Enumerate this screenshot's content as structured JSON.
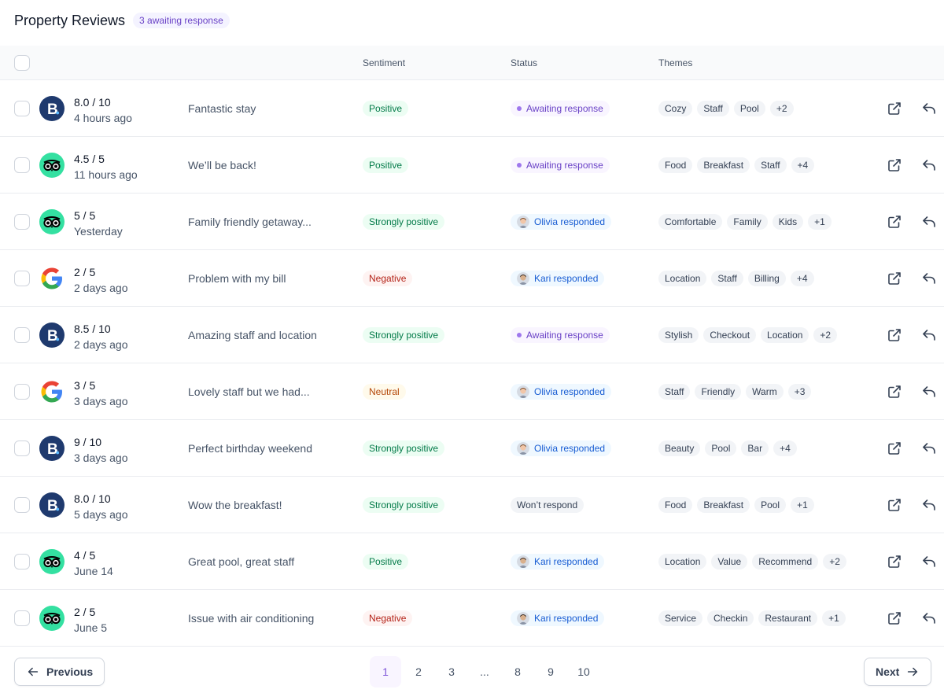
{
  "header": {
    "title": "Property Reviews",
    "awaiting_count": "3 awaiting response"
  },
  "columns": {
    "sentiment": "Sentiment",
    "status": "Status",
    "themes": "Themes"
  },
  "colors": {
    "booking": "#1f3a6e",
    "tripadvisor": "#34e0a1",
    "accent_purple": "#7f56d9"
  },
  "reviews": [
    {
      "source": "booking",
      "rating": "8.0 / 10",
      "when": "4 hours ago",
      "title": "Fantastic stay",
      "sentiment": "Positive",
      "sentiment_kind": "positive",
      "status": "Awaiting response",
      "status_kind": "awaiting",
      "themes": [
        "Cozy",
        "Staff",
        "Pool",
        "+2"
      ]
    },
    {
      "source": "tripadvisor",
      "rating": "4.5 / 5",
      "when": "11 hours ago",
      "title": "We’ll be back!",
      "sentiment": "Positive",
      "sentiment_kind": "positive",
      "status": "Awaiting response",
      "status_kind": "awaiting",
      "themes": [
        "Food",
        "Breakfast",
        "Staff",
        "+4"
      ]
    },
    {
      "source": "tripadvisor",
      "rating": "5 / 5",
      "when": "Yesterday",
      "title": "Family friendly getaway...",
      "sentiment": "Strongly positive",
      "sentiment_kind": "positive",
      "status": "Olivia responded",
      "status_kind": "responded",
      "responder": "olivia",
      "themes": [
        "Comfortable",
        "Family",
        "Kids",
        "+1"
      ]
    },
    {
      "source": "google",
      "rating": "2 / 5",
      "when": "2 days ago",
      "title": "Problem with my bill",
      "sentiment": "Negative",
      "sentiment_kind": "negative",
      "status": "Kari responded",
      "status_kind": "responded",
      "responder": "kari",
      "themes": [
        "Location",
        "Staff",
        "Billing",
        "+4"
      ]
    },
    {
      "source": "booking",
      "rating": "8.5 / 10",
      "when": "2 days ago",
      "title": "Amazing staff and location",
      "sentiment": "Strongly positive",
      "sentiment_kind": "positive",
      "status": "Awaiting response",
      "status_kind": "awaiting",
      "themes": [
        "Stylish",
        "Checkout",
        "Location",
        "+2"
      ]
    },
    {
      "source": "google",
      "rating": "3 / 5",
      "when": "3 days ago",
      "title": "Lovely staff but we had...",
      "sentiment": "Neutral",
      "sentiment_kind": "neutral",
      "status": "Olivia responded",
      "status_kind": "responded",
      "responder": "olivia",
      "themes": [
        "Staff",
        "Friendly",
        "Warm",
        "+3"
      ]
    },
    {
      "source": "booking",
      "rating": "9 / 10",
      "when": "3 days ago",
      "title": "Perfect birthday weekend",
      "sentiment": "Strongly positive",
      "sentiment_kind": "positive",
      "status": "Olivia responded",
      "status_kind": "responded",
      "responder": "olivia",
      "themes": [
        "Beauty",
        "Pool",
        "Bar",
        "+4"
      ]
    },
    {
      "source": "booking",
      "rating": "8.0 / 10",
      "when": "5 days ago",
      "title": "Wow the breakfast!",
      "sentiment": "Strongly positive",
      "sentiment_kind": "positive",
      "status": "Won’t respond",
      "status_kind": "wont",
      "themes": [
        "Food",
        "Breakfast",
        "Pool",
        "+1"
      ]
    },
    {
      "source": "tripadvisor",
      "rating": "4 / 5",
      "when": "June 14",
      "title": "Great pool, great staff",
      "sentiment": "Positive",
      "sentiment_kind": "positive",
      "status": "Kari responded",
      "status_kind": "responded",
      "responder": "kari",
      "themes": [
        "Location",
        "Value",
        "Recommend",
        "+2"
      ]
    },
    {
      "source": "tripadvisor",
      "rating": "2 / 5",
      "when": "June 5",
      "title": "Issue with air conditioning",
      "sentiment": "Negative",
      "sentiment_kind": "negative",
      "status": "Kari responded",
      "status_kind": "responded",
      "responder": "kari",
      "themes": [
        "Service",
        "Checkin",
        "Restaurant",
        "+1"
      ]
    }
  ],
  "pagination": {
    "previous_label": "Previous",
    "next_label": "Next",
    "pages": [
      "1",
      "2",
      "3",
      "...",
      "8",
      "9",
      "10"
    ],
    "current": "1"
  }
}
